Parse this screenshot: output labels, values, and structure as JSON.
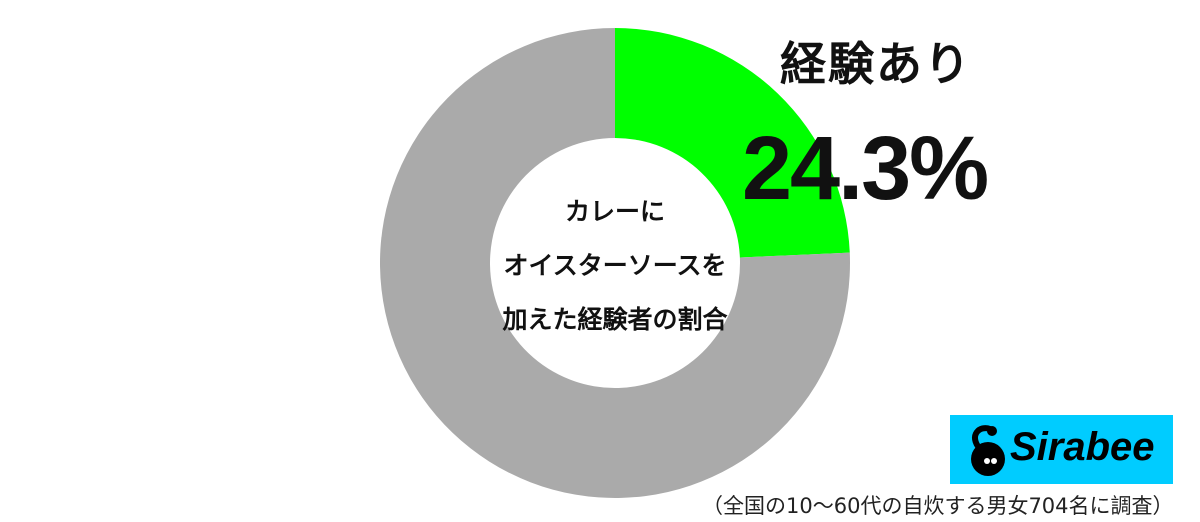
{
  "chart_data": {
    "type": "pie",
    "donut": true,
    "center_label": [
      "カレーに",
      "オイスターソースを",
      "加えた経験者の割合"
    ],
    "slices": [
      {
        "name": "経験あり",
        "value": 24.3,
        "color": "#00ff00",
        "label": "24.3%"
      },
      {
        "name": "",
        "value": 75.7,
        "color": "#aaaaaa"
      }
    ],
    "start_angle": "12 o'clock",
    "direction": "clockwise"
  },
  "annotation": {
    "title": "経験あり",
    "value": "24.3%"
  },
  "logo": {
    "text": "Sirabee",
    "color": "#00ccff"
  },
  "note": "（全国の10〜60代の自炊する男女704名に調査）"
}
